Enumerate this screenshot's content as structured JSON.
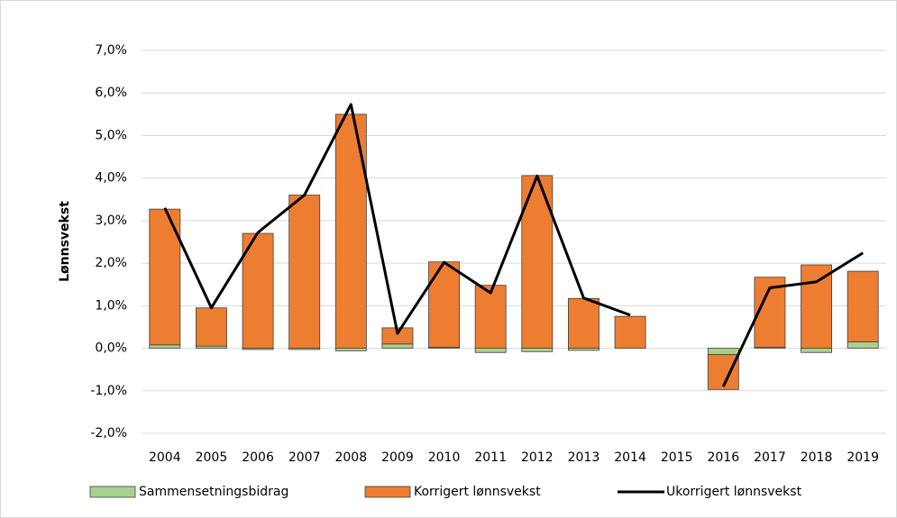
{
  "chart_data": {
    "type": "bar",
    "ylabel": "Lønnsvekst",
    "categories": [
      "2004",
      "2005",
      "2006",
      "2007",
      "2008",
      "2009",
      "2010",
      "2011",
      "2012",
      "2013",
      "2014",
      "2015",
      "2016",
      "2017",
      "2018",
      "2019"
    ],
    "series": [
      {
        "name": "Sammensetningsbidrag",
        "type": "bar",
        "color": "#a9d18e",
        "values": [
          0.08,
          0.05,
          -0.03,
          -0.03,
          -0.06,
          0.1,
          0.02,
          -0.1,
          -0.08,
          -0.05,
          0,
          null,
          -0.15,
          0.02,
          -0.1,
          0.15
        ]
      },
      {
        "name": "Korrigert lønnsvekst",
        "type": "bar",
        "color": "#ed7d31",
        "values": [
          3.19,
          0.9,
          2.7,
          3.6,
          5.5,
          0.38,
          2.01,
          1.48,
          4.06,
          1.17,
          0.75,
          null,
          -0.82,
          1.65,
          1.96,
          1.66
        ]
      },
      {
        "name": "Ukorrigert lønnsvekst",
        "type": "line",
        "color": "#000000",
        "values": [
          3.3,
          0.95,
          2.72,
          3.6,
          5.73,
          0.35,
          2.02,
          1.3,
          4.05,
          1.18,
          0.78,
          null,
          -0.9,
          1.42,
          1.56,
          2.24
        ]
      }
    ],
    "stacked": true,
    "ylim": [
      -2,
      7
    ],
    "yticks": [
      {
        "value": -2,
        "label": "-2,0%"
      },
      {
        "value": -1,
        "label": "-1,0%"
      },
      {
        "value": 0,
        "label": "0,0%"
      },
      {
        "value": 1,
        "label": "1,0%"
      },
      {
        "value": 2,
        "label": "2,0%"
      },
      {
        "value": 3,
        "label": "3,0%"
      },
      {
        "value": 4,
        "label": "4,0%"
      },
      {
        "value": 5,
        "label": "5,0%"
      },
      {
        "value": 6,
        "label": "6,0%"
      },
      {
        "value": 7,
        "label": "7,0%"
      }
    ],
    "grid": true,
    "legend": "bottom"
  }
}
